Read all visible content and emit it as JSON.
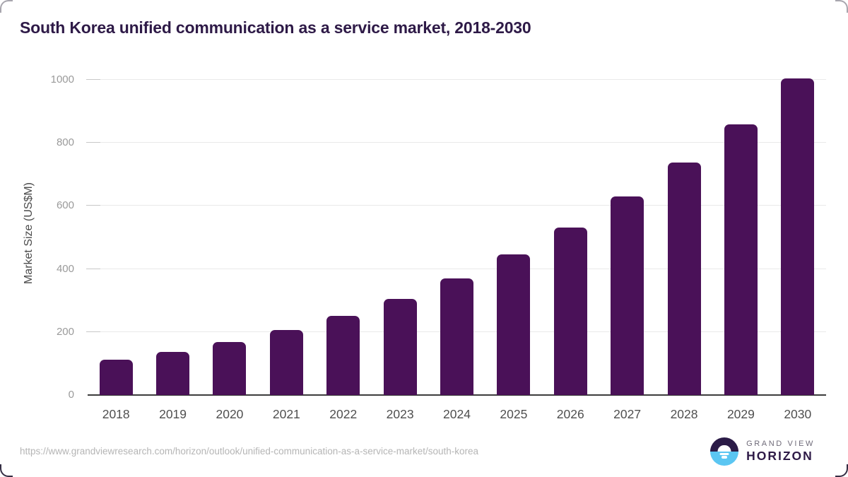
{
  "chart_data": {
    "type": "bar",
    "title": "South Korea unified communication as a service market, 2018-2030",
    "categories": [
      "2018",
      "2019",
      "2020",
      "2021",
      "2022",
      "2023",
      "2024",
      "2025",
      "2026",
      "2027",
      "2028",
      "2029",
      "2030"
    ],
    "values": [
      112,
      137,
      169,
      207,
      251,
      305,
      371,
      446,
      532,
      630,
      738,
      859,
      1004
    ],
    "xlabel": "",
    "ylabel": "Market Size (US$M)",
    "ylim": [
      0,
      1000
    ],
    "yticks": [
      0,
      200,
      400,
      600,
      800,
      1000
    ],
    "grid": "horizontal-light-gray",
    "legend": "none",
    "bar_color": "#4A1158"
  },
  "colors": {
    "title_text": "#2E1A47",
    "bar_fill": "#4A1158",
    "axis_line": "#3C3C3C",
    "gridline": "#E9E9E9",
    "tick_text": "#9A9A9A",
    "logo_blue": "#5BC6F2",
    "logo_dark_purple": "#2B1B47"
  },
  "footer": {
    "url": "https://www.grandviewresearch.com/horizon/outlook/unified-communication-as-a-service-market/south-korea",
    "logo": {
      "line1": "GRAND VIEW",
      "line2": "HORIZON"
    }
  }
}
